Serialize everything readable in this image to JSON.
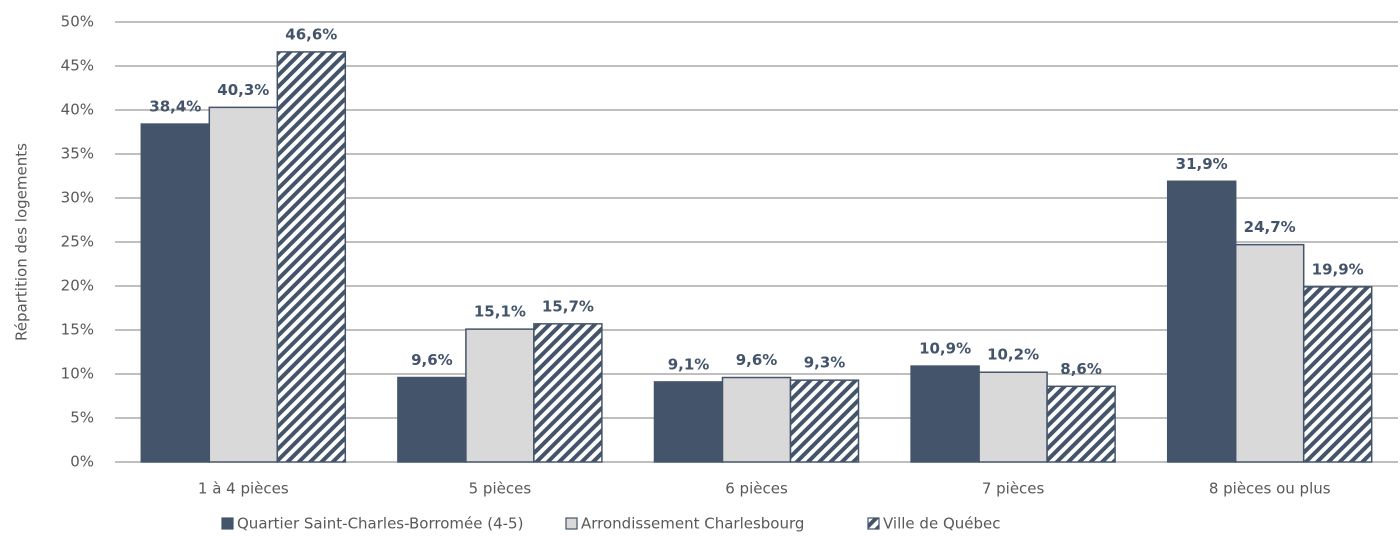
{
  "chart_data": {
    "type": "bar",
    "y_label": "Répartition des logements",
    "categories": [
      "1 à 4 pièces",
      "5 pièces",
      "6 pièces",
      "7 pièces",
      "8 pièces ou plus"
    ],
    "series": [
      {
        "name": "Quartier Saint-Charles-Borromée (4-5)",
        "color": "#44546a",
        "values": [
          38.4,
          9.6,
          9.1,
          10.9,
          31.9
        ],
        "value_labels": [
          "38,4%",
          "9,6%",
          "9,1%",
          "10,9%",
          "31,9%"
        ]
      },
      {
        "name": "Arrondissement Charlesbourg",
        "color": "#d9d9d9",
        "values": [
          40.3,
          15.1,
          9.6,
          10.2,
          24.7
        ],
        "value_labels": [
          "40,3%",
          "15,1%",
          "9,6%",
          "10,2%",
          "24,7%"
        ]
      },
      {
        "name": "Ville de Québec",
        "color": "#44546a",
        "pattern": "hatch",
        "values": [
          46.6,
          15.7,
          9.3,
          8.6,
          19.9
        ],
        "value_labels": [
          "46,6%",
          "15,7%",
          "9,3%",
          "8,6%",
          "19,9%"
        ]
      }
    ],
    "ylim": [
      0,
      50
    ],
    "yticks": [
      {
        "value": 0,
        "label": "0%"
      },
      {
        "value": 5,
        "label": "5%"
      },
      {
        "value": 10,
        "label": "10%"
      },
      {
        "value": 15,
        "label": "15%"
      },
      {
        "value": 20,
        "label": "20%"
      },
      {
        "value": 25,
        "label": "25%"
      },
      {
        "value": 30,
        "label": "30%"
      },
      {
        "value": 35,
        "label": "35%"
      },
      {
        "value": 40,
        "label": "40%"
      },
      {
        "value": 45,
        "label": "45%"
      },
      {
        "value": 50,
        "label": "50%"
      }
    ],
    "grid": true,
    "legend": "bottom"
  }
}
